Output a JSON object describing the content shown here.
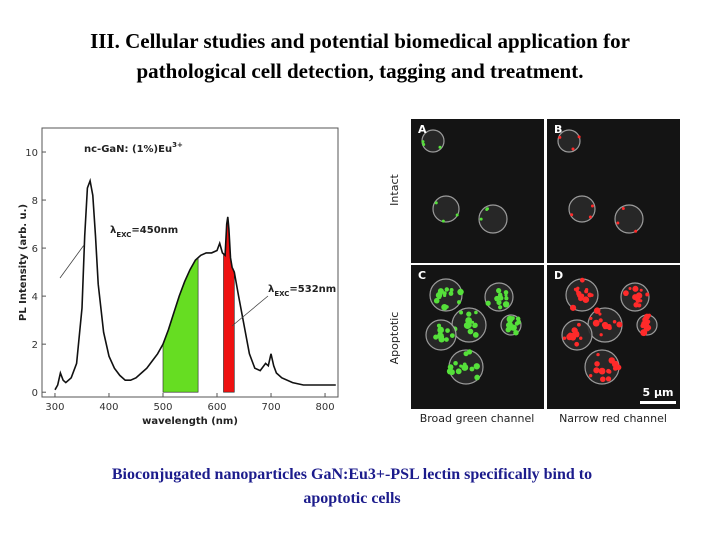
{
  "title": {
    "line1": "III. Cellular studies and potential biomedical application for",
    "line2": "pathological cell detection, tagging  and treatment."
  },
  "chart_data": {
    "type": "line",
    "annotation": {
      "text": "nc-GaN: (1%)Eu",
      "sup": "3+"
    },
    "x_label": "wavelength (nm)",
    "y_label": "PL Intensity (arb. u.)",
    "xlim": [
      276,
      824
    ],
    "xticks": [
      300,
      400,
      500,
      600,
      700,
      800
    ],
    "ylim": [
      -0.2,
      11
    ],
    "yticks": [
      0,
      2,
      4,
      6,
      8,
      10
    ],
    "series": [
      {
        "color": "#111111",
        "x": [
          300,
          305,
          310,
          315,
          320,
          330,
          340,
          350,
          355,
          360,
          365,
          370,
          375,
          380,
          390,
          400,
          410,
          420,
          430,
          440,
          450,
          460,
          470,
          480,
          490,
          500,
          510,
          520,
          530,
          540,
          550,
          560,
          570,
          580,
          590,
          600,
          605,
          610,
          615,
          618,
          620,
          622,
          625,
          628,
          632,
          640,
          650,
          660,
          670,
          680,
          690,
          695,
          700,
          705,
          710,
          720,
          740,
          760,
          780,
          800,
          820
        ],
        "values": [
          0.1,
          0.3,
          0.8,
          0.5,
          0.4,
          0.6,
          1.2,
          3.5,
          6.5,
          8.5,
          8.8,
          8.2,
          6.5,
          4.5,
          2.5,
          1.5,
          1.0,
          0.7,
          0.5,
          0.5,
          0.6,
          0.8,
          1.0,
          1.3,
          1.6,
          2.0,
          2.6,
          3.3,
          4.0,
          4.6,
          5.1,
          5.5,
          5.7,
          5.8,
          5.8,
          5.9,
          6.2,
          5.8,
          5.7,
          7.0,
          7.3,
          6.8,
          5.6,
          5.2,
          5.0,
          4.0,
          2.8,
          1.6,
          1.0,
          0.9,
          1.2,
          1.1,
          1.6,
          1.1,
          0.8,
          0.6,
          0.4,
          0.3,
          0.3,
          0.3,
          0.3
        ]
      }
    ],
    "bands": [
      {
        "range": [
          500,
          565
        ],
        "color": "#66dd22"
      },
      {
        "range": [
          612,
          632
        ],
        "color": "#ee1111"
      }
    ],
    "excitations": [
      {
        "symbol": "λ",
        "sub": "EXC",
        "text": "=450nm"
      },
      {
        "symbol": "λ",
        "sub": "EXC",
        "text": "=532nm"
      }
    ]
  },
  "micrograph": {
    "panels": [
      "A",
      "B",
      "C",
      "D"
    ],
    "rows": [
      "Intact",
      "Apoptotic"
    ],
    "channels": [
      "Broad green channel",
      "Narrow red channel"
    ],
    "scale": "5 µm"
  },
  "caption": {
    "line1": "Bioconjugated nanoparticles GaN:Eu3+-PSL lectin specifically bind to",
    "line2": "apoptotic cells"
  }
}
